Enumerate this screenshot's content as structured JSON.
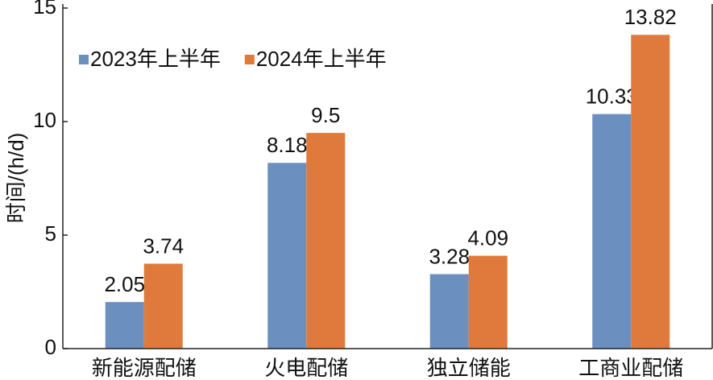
{
  "chart_data": {
    "type": "bar",
    "y_label": "时间/(h/d)",
    "categories": [
      "新能源配储",
      "火电配储",
      "独立储能",
      "工商业配储"
    ],
    "series": [
      {
        "name": "2023年上半年",
        "color": "#6b8fbf",
        "values": [
          2.05,
          8.18,
          3.28,
          10.33
        ]
      },
      {
        "name": "2024年上半年",
        "color": "#e07a3c",
        "values": [
          3.74,
          9.5,
          4.09,
          13.82
        ]
      }
    ],
    "ylim": [
      0,
      15
    ],
    "yticks": [
      0,
      5,
      10,
      15
    ],
    "grid": false,
    "legend": "upper left"
  }
}
